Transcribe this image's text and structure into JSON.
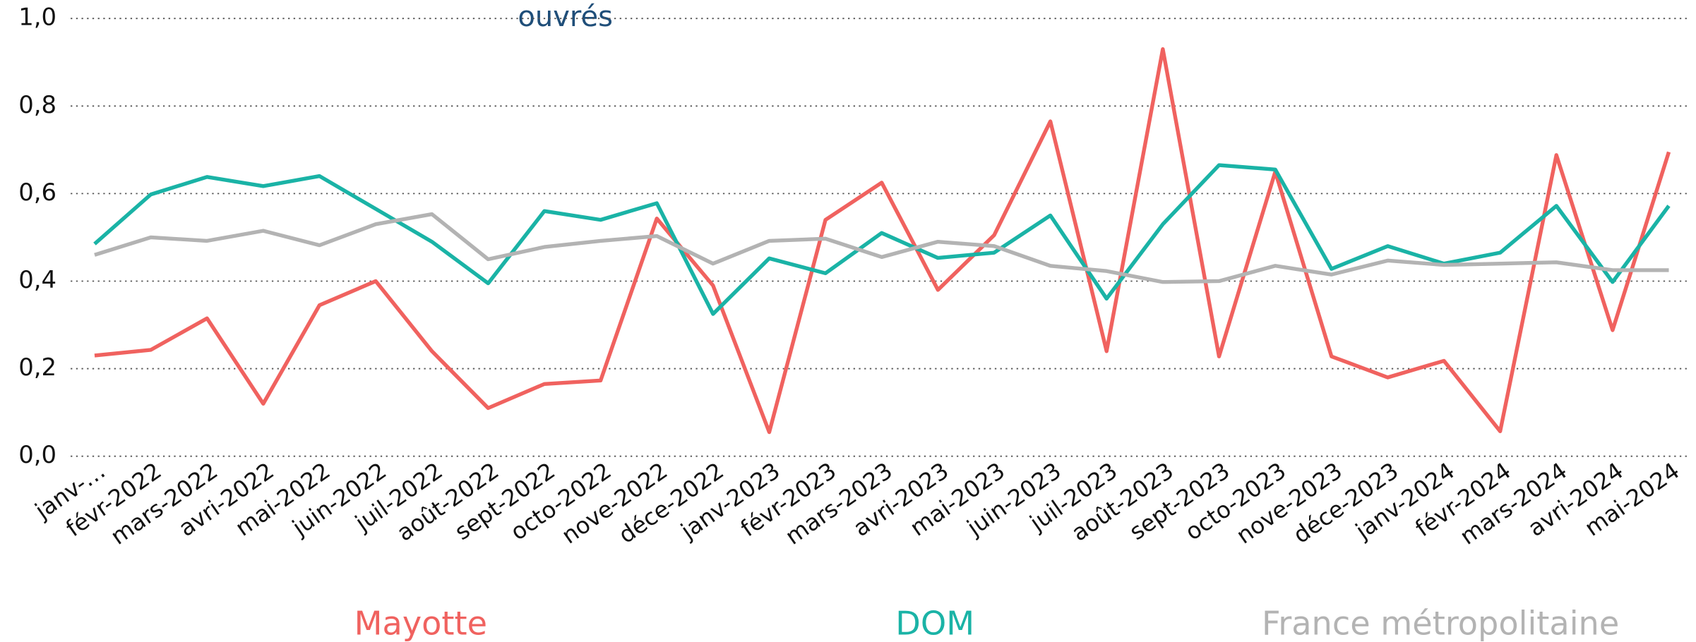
{
  "chart_data": {
    "type": "line",
    "title": "ouvrés",
    "categories": [
      "janv-…",
      "févr-2022",
      "mars-2022",
      "avri-2022",
      "mai-2022",
      "juin-2022",
      "juil-2022",
      "août-2022",
      "sept-2022",
      "octo-2022",
      "nove-2022",
      "déce-2022",
      "janv-2023",
      "févr-2023",
      "mars-2023",
      "avri-2023",
      "mai-2023",
      "juin-2023",
      "juil-2023",
      "août-2023",
      "sept-2023",
      "octo-2023",
      "nove-2023",
      "déce-2023",
      "janv-2024",
      "févr-2024",
      "mars-2024",
      "avri-2024",
      "mai-2024"
    ],
    "series": [
      {
        "name": "Mayotte",
        "color": "#f0625f",
        "values": [
          0.23,
          0.243,
          0.315,
          0.12,
          0.345,
          0.4,
          0.24,
          0.11,
          0.165,
          0.173,
          0.543,
          0.39,
          0.055,
          0.54,
          0.625,
          0.38,
          0.505,
          0.765,
          0.24,
          0.93,
          0.228,
          0.65,
          0.228,
          0.18,
          0.218,
          0.057,
          0.688,
          0.288,
          0.695
        ]
      },
      {
        "name": "DOM",
        "color": "#1ab3a6",
        "values": [
          0.485,
          0.598,
          0.638,
          0.617,
          0.64,
          0.565,
          0.49,
          0.395,
          0.56,
          0.54,
          0.578,
          0.325,
          0.452,
          0.418,
          0.51,
          0.453,
          0.465,
          0.55,
          0.36,
          0.53,
          0.665,
          0.655,
          0.428,
          0.48,
          0.44,
          0.465,
          0.572,
          0.398,
          0.572
        ]
      },
      {
        "name": "France métropolitaine",
        "color": "#b3b3b3",
        "values": [
          0.46,
          0.5,
          0.492,
          0.515,
          0.482,
          0.53,
          0.553,
          0.45,
          0.478,
          0.492,
          0.503,
          0.44,
          0.492,
          0.497,
          0.455,
          0.49,
          0.48,
          0.435,
          0.423,
          0.398,
          0.4,
          0.435,
          0.415,
          0.447,
          0.437,
          0.44,
          0.443,
          0.425,
          0.425
        ]
      }
    ],
    "ylim": [
      0,
      1
    ],
    "yticks": [
      {
        "value": 0,
        "label": "0,0"
      },
      {
        "value": 0.2,
        "label": "0,2"
      },
      {
        "value": 0.4,
        "label": "0,4"
      },
      {
        "value": 0.6,
        "label": "0,6"
      },
      {
        "value": 0.8,
        "label": "0,8"
      },
      {
        "value": 1,
        "label": "1,0"
      }
    ],
    "grid": true
  }
}
